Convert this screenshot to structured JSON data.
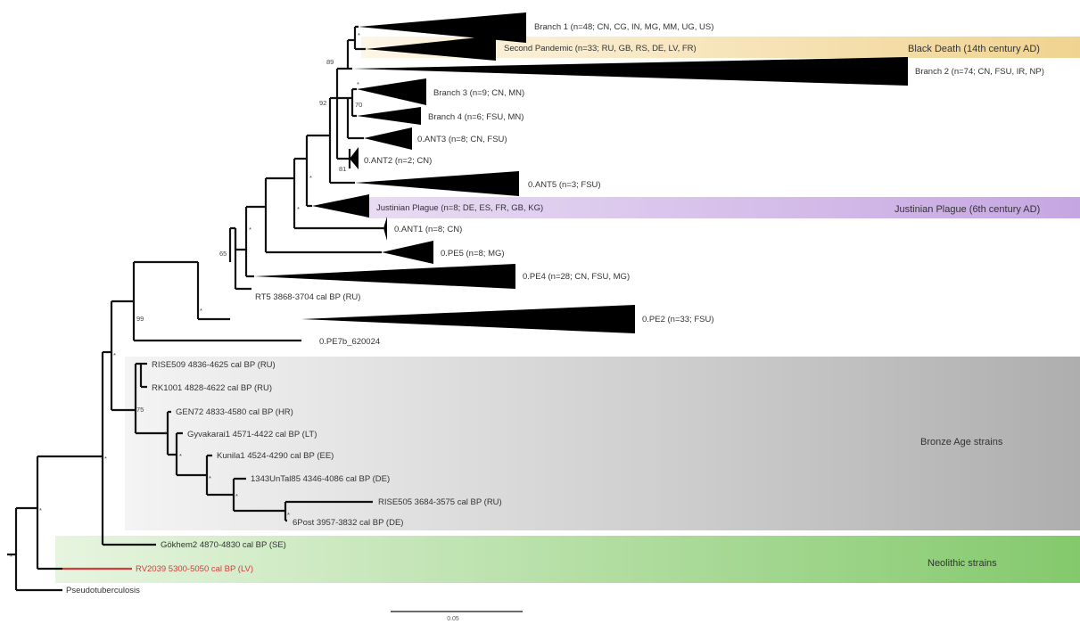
{
  "bands": {
    "black_death": "Black Death (14th century AD)",
    "justinian": "Justinian Plague (6th century AD)",
    "bronze_age": "Bronze Age strains",
    "neolithic": "Neolithic strains"
  },
  "clades": {
    "branch1": "Branch 1 (n=48; CN, CG, IN, MG, MM, UG, US)",
    "second_pandemic": "Second Pandemic (n=33; RU, GB, RS, DE, LV, FR)",
    "branch2": "Branch 2 (n=74; CN, FSU, IR, NP)",
    "branch3": "Branch 3 (n=9; CN, MN)",
    "branch4": "Branch 4 (n=6; FSU, MN)",
    "ant3": "0.ANT3 (n=8; CN, FSU)",
    "ant2": "0.ANT2 (n=2; CN)",
    "ant5": "0.ANT5 (n=3; FSU)",
    "justinian": "Justinian Plague (n=8; DE, ES, FR, GB, KG)",
    "ant1": "0.ANT1 (n=8; CN)",
    "pe5": "0.PE5 (n=8; MG)",
    "pe4": "0.PE4 (n=28; CN, FSU, MG)",
    "pe2": "0.PE2 (n=33; FSU)"
  },
  "leaves": {
    "rt5": "RT5 3868-3704 cal BP (RU)",
    "pe7b": "0.PE7b_620024",
    "rise509": "RISE509 4836-4625 cal BP (RU)",
    "rk1001": "RK1001 4828-4622 cal BP (RU)",
    "gen72": "GEN72 4833-4580 cal BP (HR)",
    "gyvakarai1": "Gyvakarai1 4571-4422 cal BP (LT)",
    "kunila1": "Kunila1 4524-4290 cal BP (EE)",
    "urtal": "1343UnTal85 4346-4086 cal BP (DE)",
    "rise505": "RISE505 3684-3575 cal BP (RU)",
    "post": "6Post 3957-3832 cal BP (DE)",
    "gokhem2": "Gökhem2 4870-4830 cal BP (SE)",
    "rv2039": "RV2039 5300-5050 cal BP (LV)",
    "pseudo": "Pseudotuberculosis"
  },
  "support": {
    "s_root": "*",
    "s_neo": "*",
    "s_bronze": "*",
    "s_main": "*",
    "s_99": "99",
    "s_75": "75",
    "s_gy": "*",
    "s_ku": "*",
    "s_ur": "*",
    "s_ri": "*",
    "s_po": "*",
    "s_rt5": "*",
    "s_65": "65",
    "s_ant1": "*",
    "s_just": "*",
    "s_ant5": "*",
    "s_ant2": "81",
    "s_92": "92",
    "s_b34": "*",
    "s_b4": "70",
    "s_bd": "89",
    "s_b1": "*"
  },
  "scale_bar": {
    "label": "0.05"
  },
  "colors": {
    "black_death_band": "#f2d79a",
    "justinian_band": "#c8a8e3",
    "bronze_band": "#b9b9b9",
    "neolithic_band": "#8fce78",
    "highlight_text": "#d23c3c"
  }
}
